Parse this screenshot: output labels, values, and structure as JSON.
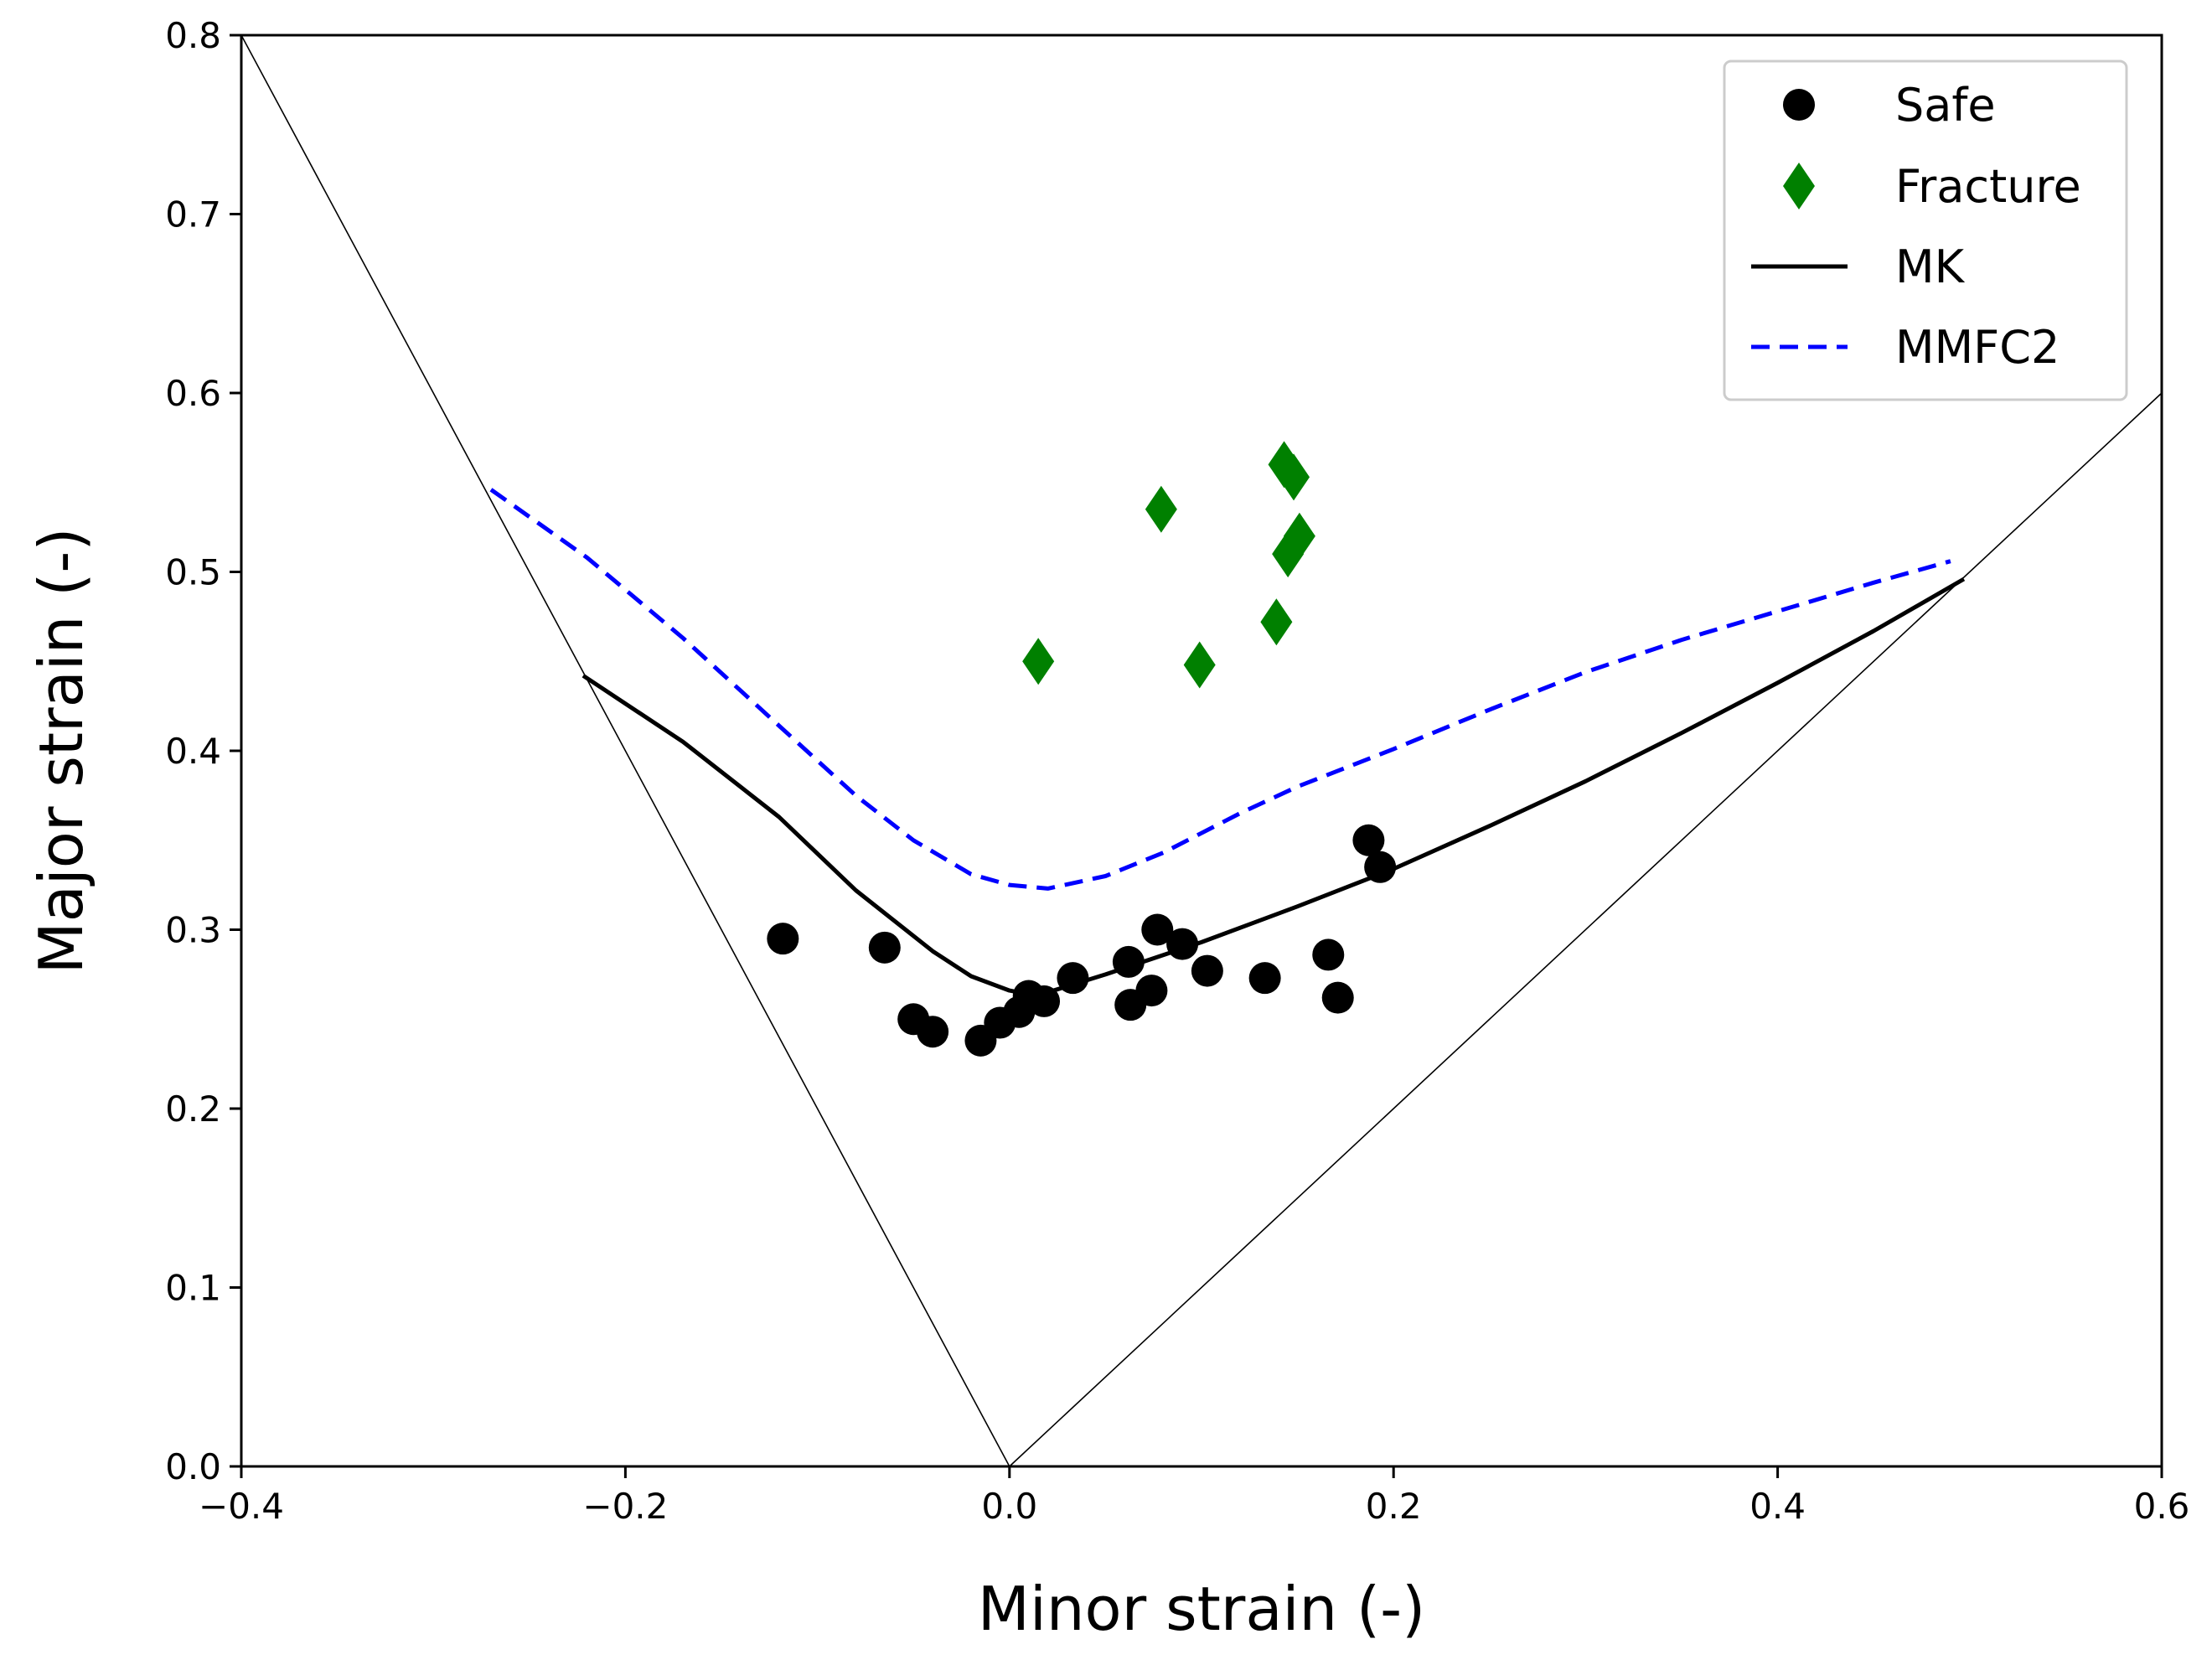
{
  "chart_data": {
    "type": "scatter",
    "title": "",
    "xlabel": "Minor strain (-)",
    "ylabel": "Major strain (-)",
    "xlim": [
      -0.4,
      0.6
    ],
    "ylim": [
      0.0,
      0.8
    ],
    "xticks": [
      -0.4,
      -0.2,
      0.0,
      0.2,
      0.4,
      0.6
    ],
    "xtick_labels": [
      "−0.4",
      "−0.2",
      "0.0",
      "0.2",
      "0.4",
      "0.6"
    ],
    "yticks": [
      0.0,
      0.1,
      0.2,
      0.3,
      0.4,
      0.5,
      0.6,
      0.7,
      0.8
    ],
    "ytick_labels": [
      "0.0",
      "0.1",
      "0.2",
      "0.3",
      "0.4",
      "0.5",
      "0.6",
      "0.7",
      "0.8"
    ],
    "grid": false,
    "legend_position": "top-right",
    "reference_lines": [
      {
        "name": "uniaxial-tension-path",
        "x": [
          -0.4,
          0.0
        ],
        "y": [
          0.8,
          0.0
        ],
        "color": "#000000"
      },
      {
        "name": "equibiaxial-path",
        "x": [
          0.0,
          0.6
        ],
        "y": [
          0.0,
          0.6
        ],
        "color": "#000000"
      }
    ],
    "series": [
      {
        "name": "Safe",
        "kind": "scatter",
        "marker": "circle",
        "color": "#000000",
        "x": [
          -0.118,
          -0.065,
          -0.05,
          -0.04,
          -0.015,
          -0.005,
          0.005,
          0.01,
          0.018,
          0.033,
          0.062,
          0.063,
          0.074,
          0.077,
          0.09,
          0.103,
          0.133,
          0.166,
          0.171,
          0.187,
          0.193
        ],
        "y": [
          0.295,
          0.29,
          0.25,
          0.243,
          0.238,
          0.248,
          0.254,
          0.263,
          0.26,
          0.273,
          0.282,
          0.258,
          0.266,
          0.3,
          0.292,
          0.277,
          0.273,
          0.286,
          0.262,
          0.35,
          0.335
        ]
      },
      {
        "name": "Fracture",
        "kind": "scatter",
        "marker": "diamond",
        "color": "#008000",
        "x": [
          0.015,
          0.079,
          0.099,
          0.139,
          0.143,
          0.145,
          0.148,
          0.151
        ],
        "y": [
          0.45,
          0.535,
          0.448,
          0.472,
          0.56,
          0.51,
          0.553,
          0.52
        ]
      },
      {
        "name": "MK",
        "kind": "line",
        "style": "solid",
        "color": "#000000",
        "x": [
          -0.222,
          -0.17,
          -0.12,
          -0.08,
          -0.04,
          -0.02,
          0.0,
          0.01,
          0.02,
          0.05,
          0.1,
          0.15,
          0.2,
          0.25,
          0.3,
          0.35,
          0.4,
          0.45,
          0.497
        ],
        "y": [
          0.442,
          0.405,
          0.363,
          0.322,
          0.288,
          0.274,
          0.266,
          0.264,
          0.265,
          0.275,
          0.293,
          0.313,
          0.334,
          0.358,
          0.383,
          0.41,
          0.438,
          0.467,
          0.496
        ]
      },
      {
        "name": "MMFC2",
        "kind": "line",
        "style": "dashed",
        "color": "#0000ff",
        "x": [
          -0.27,
          -0.22,
          -0.17,
          -0.12,
          -0.08,
          -0.05,
          -0.02,
          0.0,
          0.02,
          0.05,
          0.08,
          0.1,
          0.12,
          0.15,
          0.2,
          0.25,
          0.3,
          0.35,
          0.4,
          0.45,
          0.49
        ],
        "y": [
          0.546,
          0.508,
          0.463,
          0.414,
          0.375,
          0.35,
          0.331,
          0.325,
          0.323,
          0.33,
          0.343,
          0.354,
          0.365,
          0.38,
          0.401,
          0.423,
          0.444,
          0.462,
          0.478,
          0.494,
          0.506
        ]
      }
    ]
  }
}
